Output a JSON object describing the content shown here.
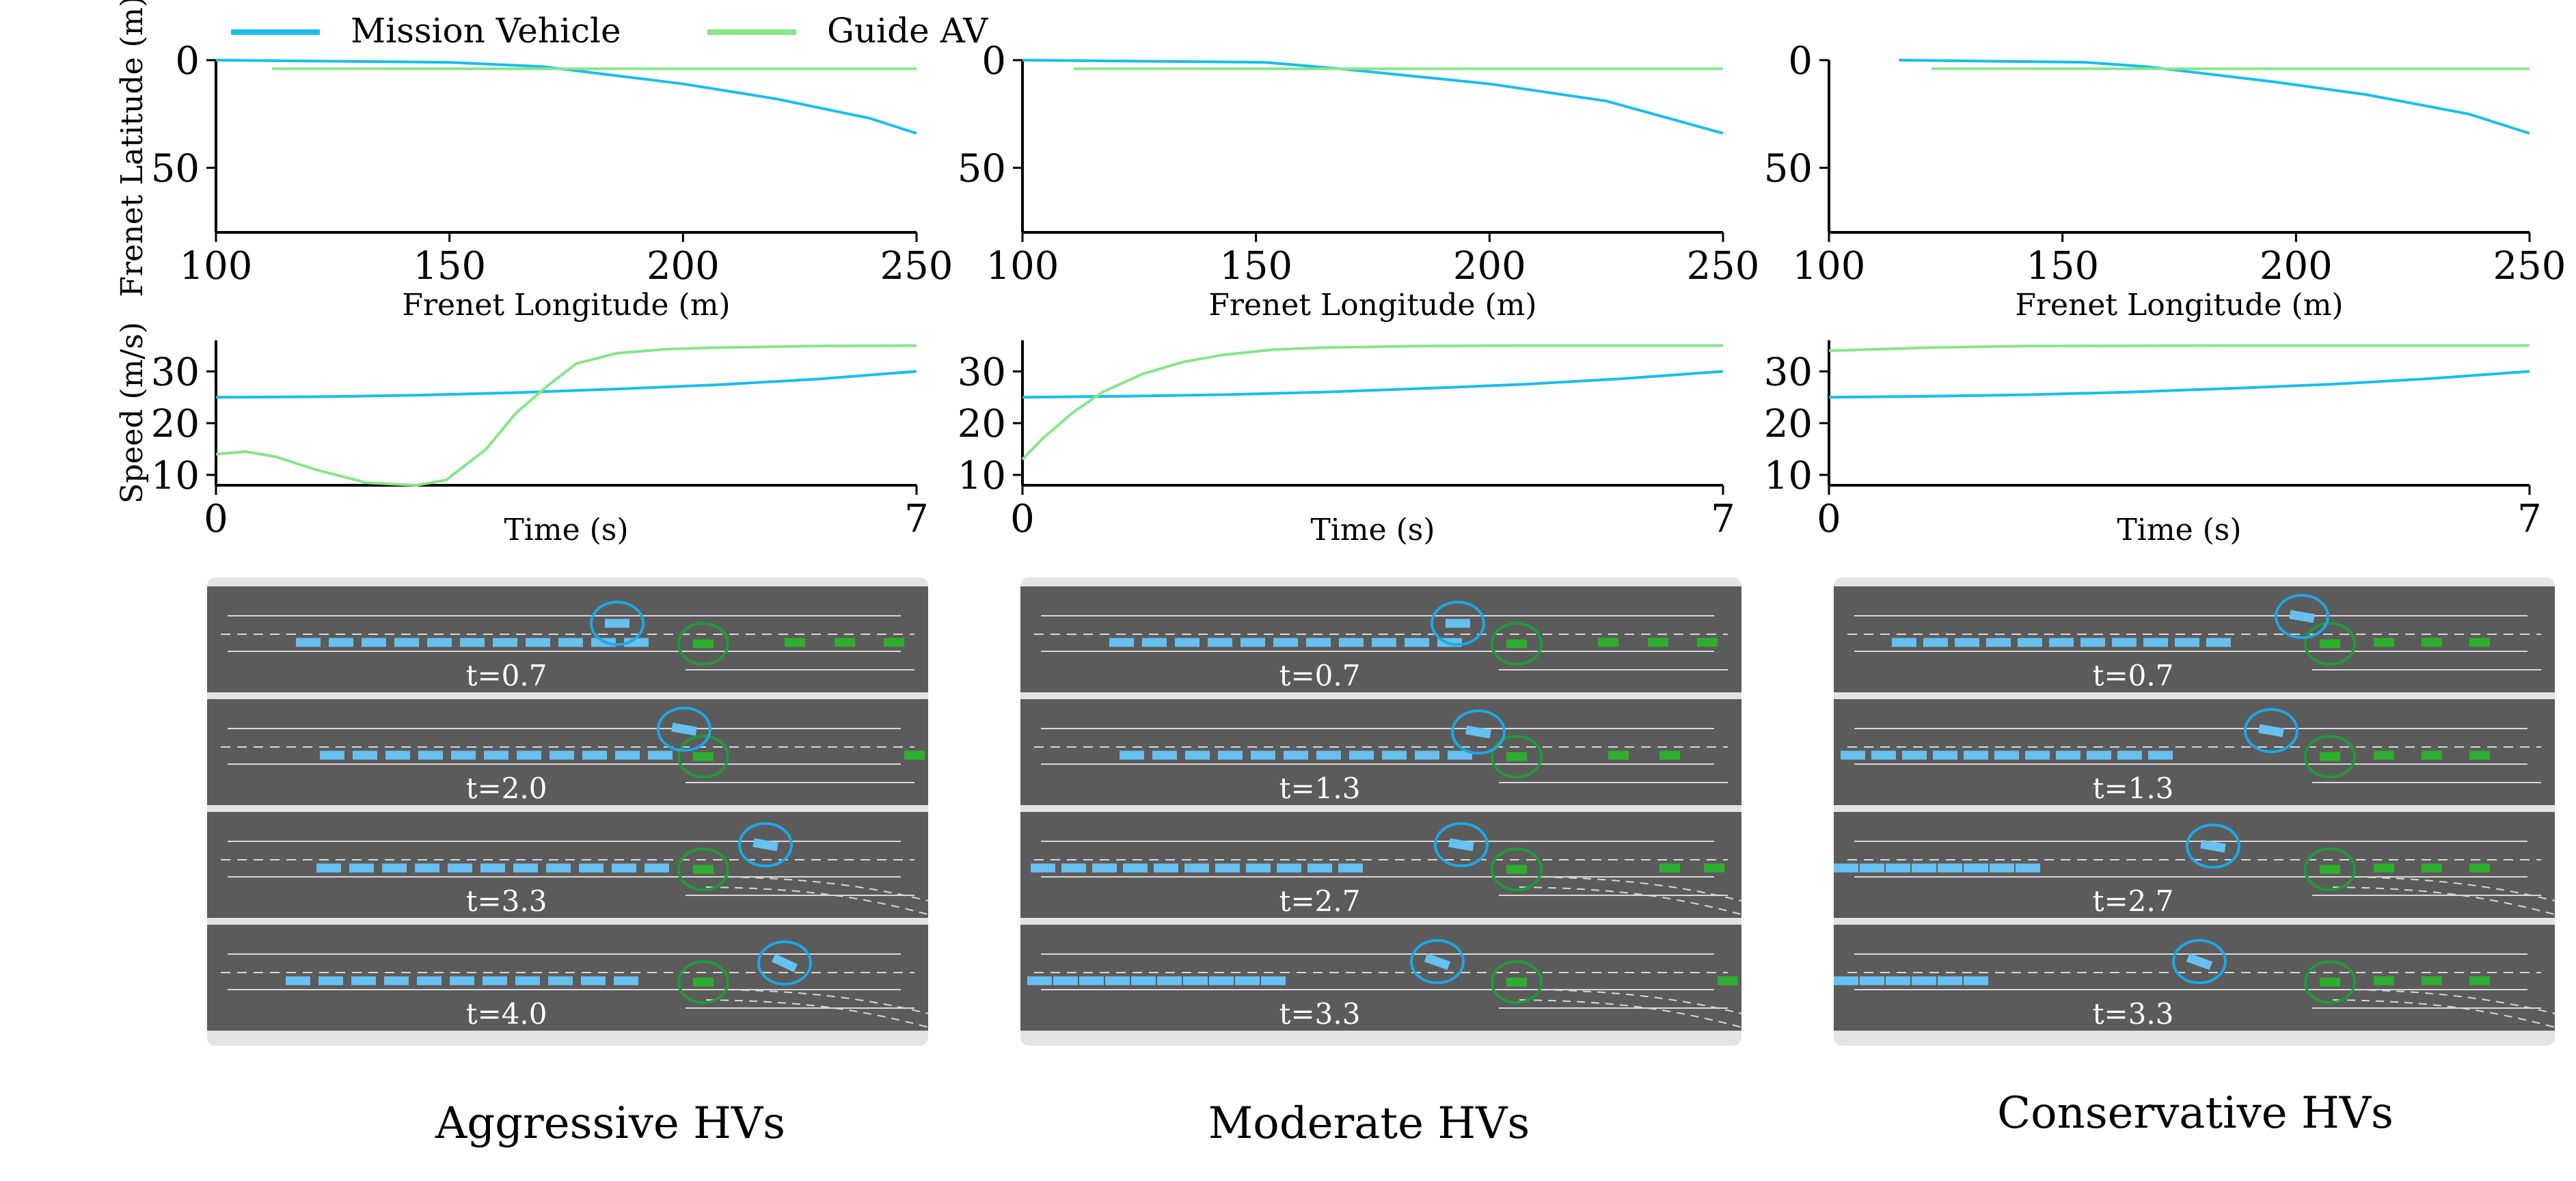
{
  "legend": {
    "items": [
      {
        "label": "Mission Vehicle",
        "color": "#17bfee"
      },
      {
        "label": "Guide AV",
        "color": "#86e689"
      }
    ]
  },
  "colors": {
    "mission": "#17bfee",
    "guide": "#86e689",
    "road": "#5b5b5b",
    "road_border": "#e3e3e3",
    "hv_car": "#67c0f0",
    "av_car": "#2eae2e",
    "mission_circle": "#1aa8e8",
    "guide_circle": "#1f9a3a"
  },
  "panels": [
    {
      "caption": "Aggressive HVs",
      "snapshot_times": [
        "t=0.7",
        "t=2.0",
        "t=3.3",
        "t=4.0"
      ]
    },
    {
      "caption": "Moderate HVs",
      "snapshot_times": [
        "t=0.7",
        "t=1.3",
        "t=2.7",
        "t=3.3"
      ]
    },
    {
      "caption": "Conservative HVs",
      "snapshot_times": [
        "t=0.7",
        "t=1.3",
        "t=2.7",
        "t=3.3"
      ]
    }
  ],
  "chart_data": [
    {
      "type": "line",
      "title": "",
      "xlabel": "Frenet Longitude (m)",
      "ylabel": "Frenet Latitude (m)",
      "xlim": [
        100,
        250
      ],
      "ylim": [
        0,
        80
      ],
      "y_inverted": true,
      "xticks": [
        "100",
        "150",
        "200",
        "250"
      ],
      "yticks": [
        "0",
        "50"
      ],
      "series": [
        {
          "name": "Mission Vehicle",
          "x": [
            100,
            150,
            170,
            200,
            220,
            240,
            250
          ],
          "y": [
            0,
            1,
            3,
            11,
            18,
            27,
            34
          ]
        },
        {
          "name": "Guide AV",
          "x": [
            112,
            250
          ],
          "y": [
            4,
            4
          ]
        }
      ]
    },
    {
      "type": "line",
      "title": "",
      "xlabel": "Frenet Longitude (m)",
      "ylabel": "",
      "xlim": [
        100,
        250
      ],
      "ylim": [
        0,
        80
      ],
      "y_inverted": true,
      "xticks": [
        "100",
        "150",
        "200",
        "250"
      ],
      "yticks": [
        "0",
        "50"
      ],
      "series": [
        {
          "name": "Mission Vehicle",
          "x": [
            100,
            152,
            168,
            200,
            225,
            250
          ],
          "y": [
            0,
            1,
            4,
            11,
            19,
            34
          ]
        },
        {
          "name": "Guide AV",
          "x": [
            111,
            250
          ],
          "y": [
            4,
            4
          ]
        }
      ]
    },
    {
      "type": "line",
      "title": "",
      "xlabel": "Frenet Longitude (m)",
      "ylabel": "",
      "xlim": [
        100,
        250
      ],
      "ylim": [
        0,
        80
      ],
      "y_inverted": true,
      "xticks": [
        "100",
        "150",
        "200",
        "250"
      ],
      "yticks": [
        "0",
        "50"
      ],
      "series": [
        {
          "name": "Mission Vehicle",
          "x": [
            115,
            155,
            168,
            195,
            215,
            237,
            250
          ],
          "y": [
            0,
            1,
            3,
            10,
            16,
            25,
            34
          ]
        },
        {
          "name": "Guide AV",
          "x": [
            122,
            250
          ],
          "y": [
            4,
            4
          ]
        }
      ]
    },
    {
      "type": "line",
      "title": "",
      "xlabel": "Time (s)",
      "ylabel": "Speed (m/s)",
      "xlim": [
        0,
        7
      ],
      "ylim": [
        8,
        36
      ],
      "xticks": [
        "0",
        "7"
      ],
      "yticks": [
        "10",
        "20",
        "30"
      ],
      "series": [
        {
          "name": "Mission Vehicle",
          "x": [
            0,
            1,
            2,
            3,
            4,
            5,
            6,
            7
          ],
          "y": [
            25,
            25.1,
            25.4,
            25.9,
            26.6,
            27.4,
            28.5,
            30
          ]
        },
        {
          "name": "Guide AV",
          "x": [
            0,
            0.3,
            0.6,
            1,
            1.5,
            2,
            2.3,
            2.7,
            3,
            3.3,
            3.6,
            4,
            4.5,
            5,
            6,
            7
          ],
          "y": [
            14,
            14.5,
            13.5,
            11,
            8.5,
            8,
            9,
            15,
            22,
            27,
            31.5,
            33.5,
            34.3,
            34.6,
            34.9,
            35
          ]
        }
      ]
    },
    {
      "type": "line",
      "title": "",
      "xlabel": "Time (s)",
      "ylabel": "",
      "xlim": [
        0,
        7
      ],
      "ylim": [
        8,
        36
      ],
      "xticks": [
        "0",
        "7"
      ],
      "yticks": [
        "10",
        "20",
        "30"
      ],
      "series": [
        {
          "name": "Mission Vehicle",
          "x": [
            0,
            1,
            2,
            3,
            4,
            5,
            6,
            7
          ],
          "y": [
            25,
            25.2,
            25.5,
            26,
            26.7,
            27.5,
            28.6,
            30
          ]
        },
        {
          "name": "Guide AV",
          "x": [
            0,
            0.2,
            0.5,
            0.8,
            1.2,
            1.6,
            2,
            2.5,
            3,
            4,
            5,
            7
          ],
          "y": [
            13,
            17,
            22,
            26,
            29.5,
            31.8,
            33.2,
            34.2,
            34.6,
            34.9,
            35,
            35
          ]
        }
      ]
    },
    {
      "type": "line",
      "title": "",
      "xlabel": "Time (s)",
      "ylabel": "",
      "xlim": [
        0,
        7
      ],
      "ylim": [
        8,
        36
      ],
      "xticks": [
        "0",
        "7"
      ],
      "yticks": [
        "10",
        "20",
        "30"
      ],
      "series": [
        {
          "name": "Mission Vehicle",
          "x": [
            0,
            1,
            2,
            3,
            4,
            5,
            6,
            7
          ],
          "y": [
            25,
            25.2,
            25.5,
            26,
            26.7,
            27.5,
            28.6,
            30
          ]
        },
        {
          "name": "Guide AV",
          "x": [
            0,
            1,
            2,
            4,
            7
          ],
          "y": [
            34,
            34.6,
            34.9,
            35,
            35
          ]
        }
      ]
    }
  ]
}
